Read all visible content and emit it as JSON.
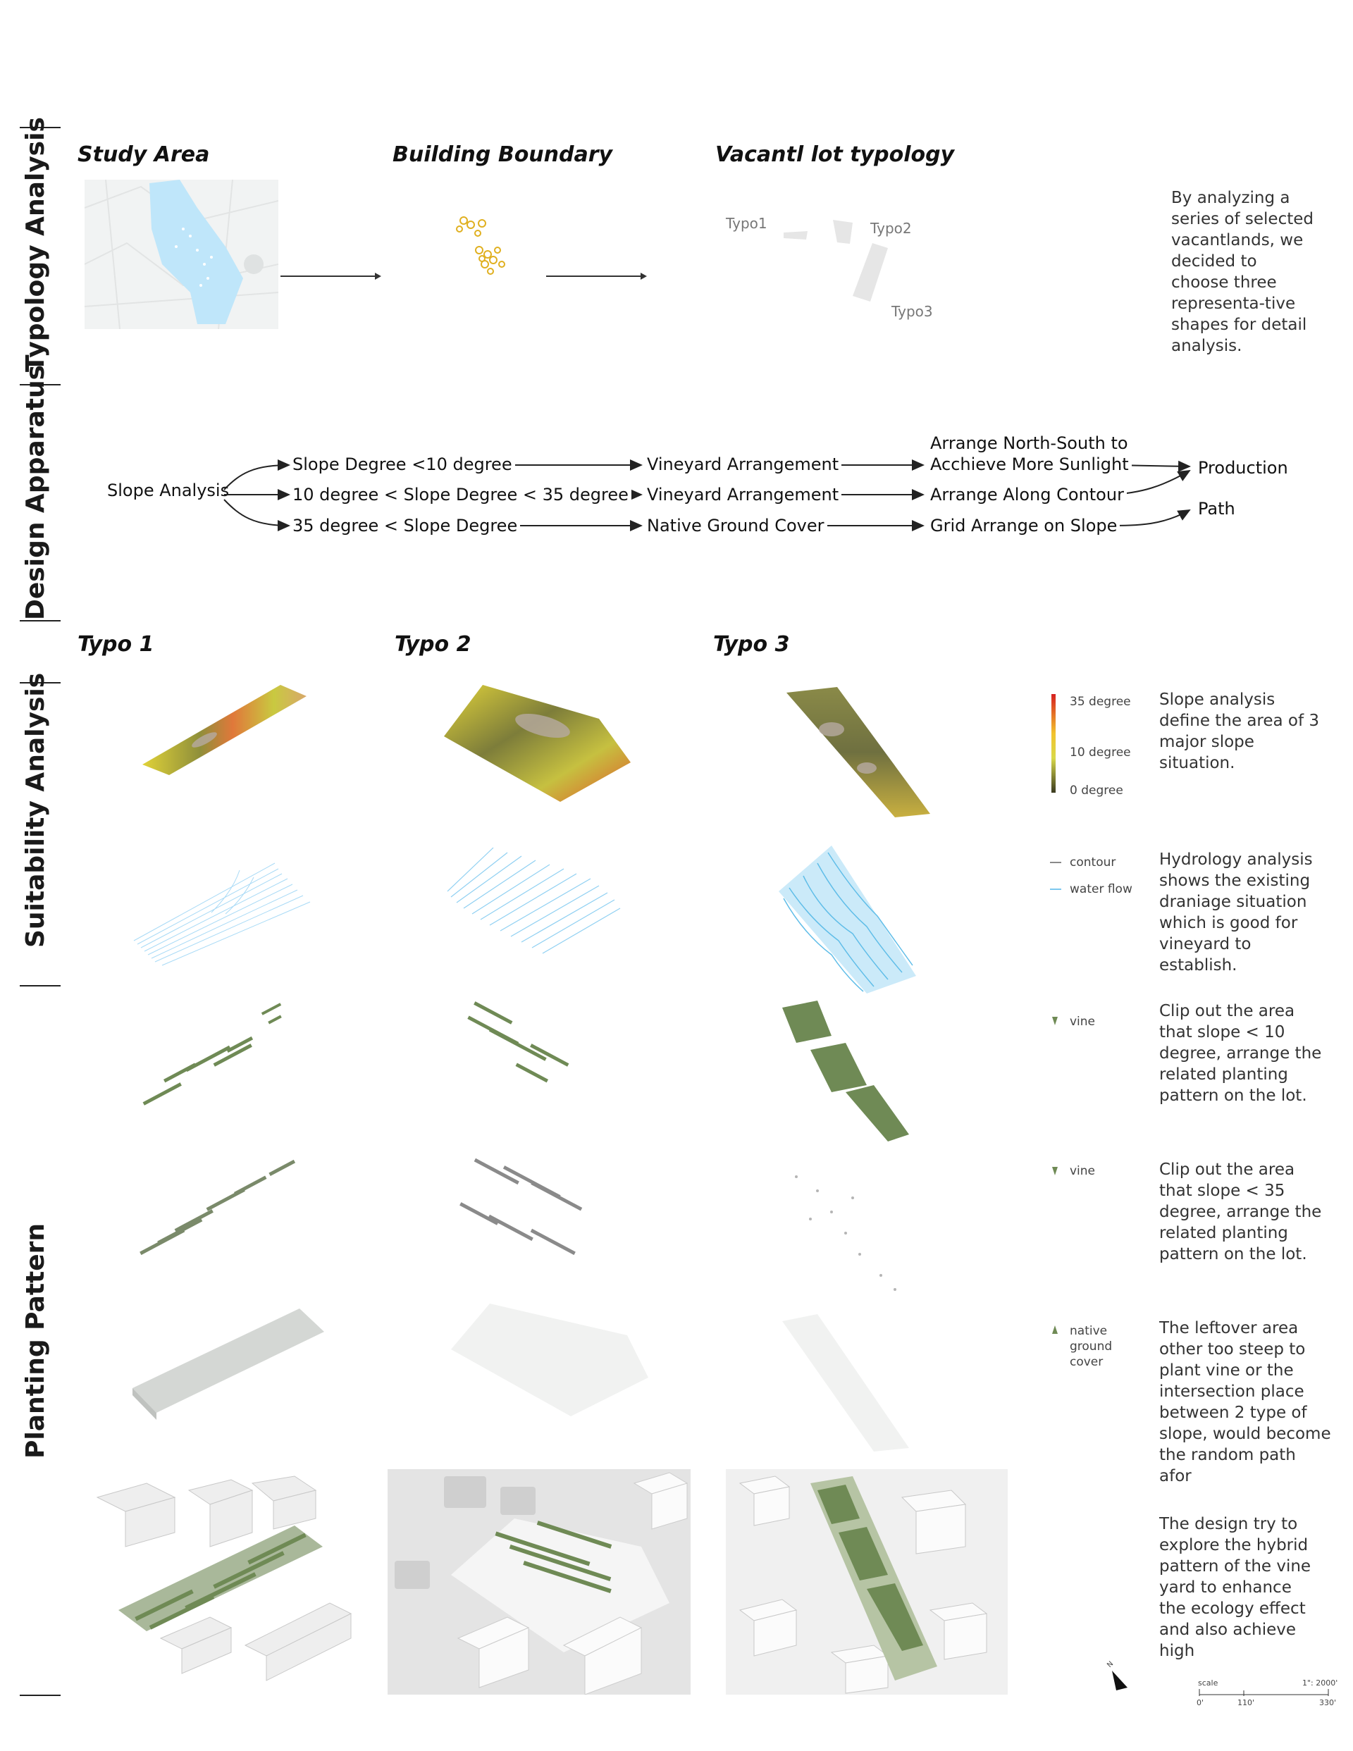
{
  "sections": {
    "typology": "Typology Analysis",
    "design": "Design Apparatus",
    "suitability": "Suitability Analysis",
    "planting": "Planting Pattern"
  },
  "typology": {
    "study_area_title": "Study Area",
    "building_boundary_title": "Building Boundary",
    "vacant_lot_title": "Vacantl lot typology",
    "typo_labels": [
      "Typo1",
      "Typo2",
      "Typo3"
    ],
    "description": "By analyzing a series of selected vacantlands, we decided to choose three representa-tive shapes for detail analysis."
  },
  "design": {
    "root": "Slope Analysis",
    "branches": [
      {
        "condition": "Slope Degree <10 degree",
        "arrangement": "Vineyard Arrangement",
        "method_line1": "Arrange North-South to",
        "method_line2": "Acchieve More Sunlight"
      },
      {
        "condition": "10 degree < Slope Degree < 35 degree",
        "arrangement": "Vineyard Arrangement",
        "method_line1": "Arrange Along Contour",
        "method_line2": ""
      },
      {
        "condition": "35 degree < Slope Degree",
        "arrangement": "Native Ground Cover",
        "method_line1": "Grid Arrange on Slope",
        "method_line2": ""
      }
    ],
    "outcomes": [
      "Production",
      "Path"
    ]
  },
  "typo_headings": [
    "Typo 1",
    "Typo 2",
    "Typo 3"
  ],
  "slope_legend": {
    "high": "35 degree",
    "mid": "10 degree",
    "low": "0 degree",
    "colors": [
      "#d62020",
      "#f2c32e",
      "#d9d94a",
      "#3a3a20"
    ]
  },
  "hydro_legend": {
    "contour": "contour",
    "water": "water flow",
    "contour_color": "#8a8a8a",
    "water_color": "#7cc8ef"
  },
  "vine_legend_1": "vine",
  "vine_legend_2": "vine",
  "ground_legend": "native ground cover",
  "row_notes": [
    "Slope analysis define the area of 3 major slope situation.",
    "Hydrology analysis shows the existing draniage situation which is good for vineyard to establish.",
    "Clip out the area that slope < 10 degree, arrange the related planting pattern on the lot.",
    "Clip out the area that slope < 35 degree, arrange the related planting pattern on the lot.",
    "The leftover area other too steep to plant vine or the intersection place between 2 type of slope, would become the random path afor",
    "The design try to explore the hybrid pattern of the vine yard to enhance the ecology effect and also  achieve high"
  ],
  "scale_bar": {
    "label": "scale",
    "ratio": "1\": 2000'",
    "ticks": [
      "0'",
      "110'",
      "330'"
    ]
  },
  "north_label": "N",
  "colors": {
    "vine_green": "#6f8a55",
    "water_blue": "#8fd0f2",
    "slope_yellow": "#d8cf38",
    "building_gray": "#e8e8e8"
  }
}
